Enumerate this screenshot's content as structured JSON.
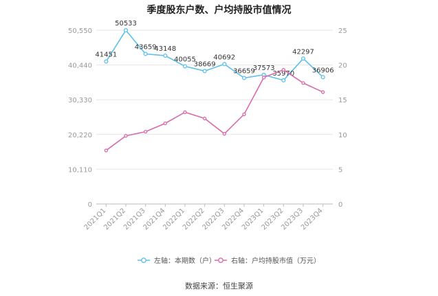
{
  "title": "季度股东户数、户均持股市值情况",
  "source": "数据来源：恒生聚源",
  "colors": {
    "left": "#5bc0eb",
    "right": "#d96aaa",
    "grid": "#e6e6e6",
    "axis_text": "#999999"
  },
  "chart_data": {
    "type": "line",
    "categories": [
      "2021Q1",
      "2021Q2",
      "2021Q3",
      "2021Q4",
      "2022Q1",
      "2022Q2",
      "2022Q3",
      "2022Q4",
      "2023Q1",
      "2023Q2",
      "2023Q3",
      "2023Q4"
    ],
    "y_left": {
      "ylim": [
        0,
        50550
      ],
      "ticks": [
        "0",
        "10,110",
        "20,220",
        "30,330",
        "40,440",
        "50,550"
      ],
      "tick_values": [
        0,
        10110,
        20220,
        30330,
        40440,
        50550
      ]
    },
    "y_right": {
      "ylim": [
        0,
        25
      ],
      "ticks": [
        "0",
        "5",
        "10",
        "15",
        "20",
        "25"
      ],
      "tick_values": [
        0,
        5,
        10,
        15,
        20,
        25
      ]
    },
    "series": [
      {
        "name": "左轴：本期数（户）",
        "axis": "left",
        "values": [
          41451,
          50533,
          43659,
          43148,
          40055,
          38669,
          40692,
          36659,
          37573,
          35970,
          42297,
          36906
        ],
        "labels": [
          "41451",
          "50533",
          "43659",
          "43148",
          "40055",
          "38669",
          "40692",
          "36659",
          "37573",
          "35970",
          "42297",
          "36906"
        ]
      },
      {
        "name": "右轴：户均持股市值（万元）",
        "axis": "right",
        "values": [
          7.7,
          9.8,
          10.4,
          11.6,
          13.2,
          12.3,
          10.1,
          12.9,
          18.2,
          19.3,
          17.4,
          16.1
        ]
      }
    ],
    "legend": "bottom",
    "grid": true
  }
}
